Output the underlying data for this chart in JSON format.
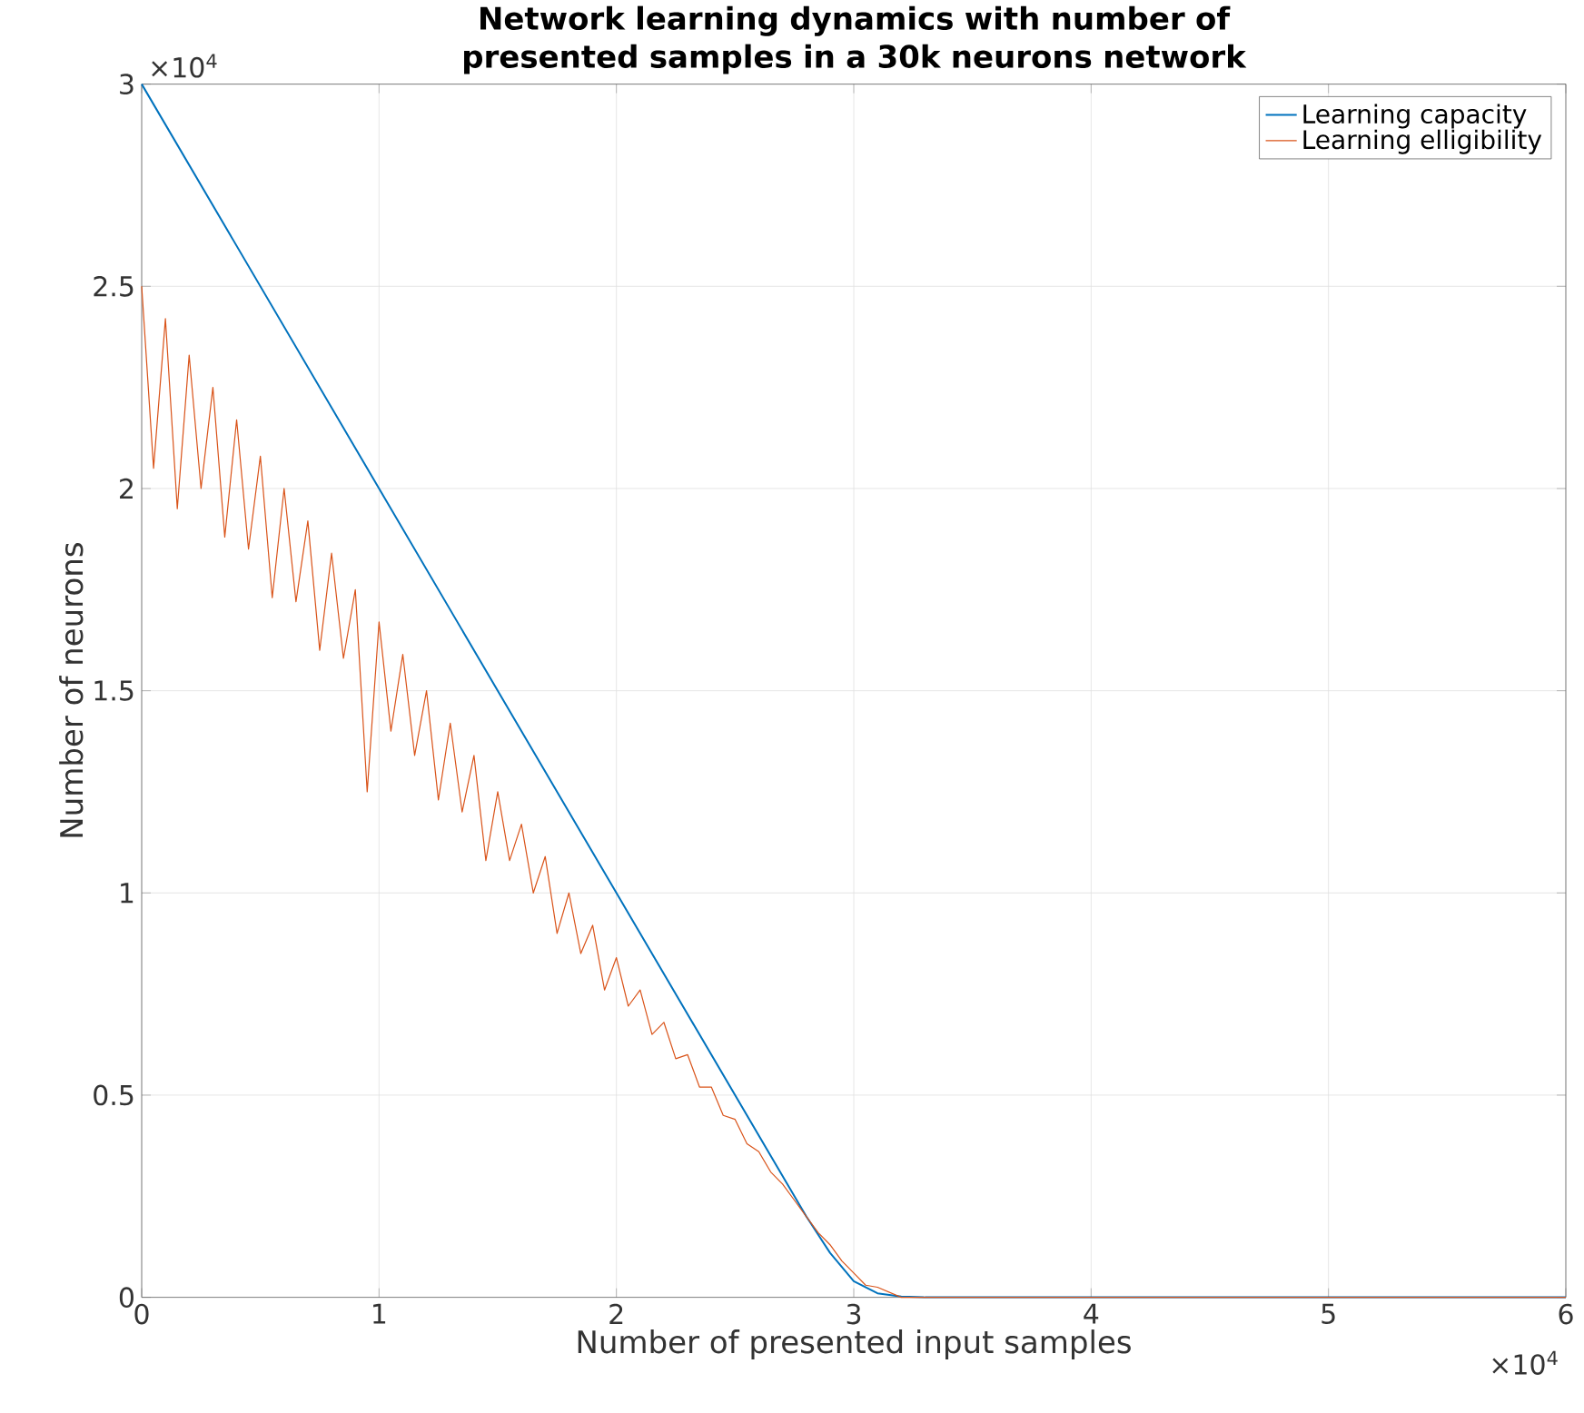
{
  "chart_data": {
    "type": "line",
    "title": "Network learning dynamics  with number of\npresented samples in a 30k neurons network",
    "xlabel": "Number of presented input samples",
    "ylabel": "Number of neurons",
    "annotations": [
      "×10$^{4}$",
      "×10$^{4}$"
    ],
    "xlim": [
      0,
      6
    ],
    "ylim": [
      0,
      3
    ],
    "xticks": [
      0,
      1,
      2,
      3,
      4,
      5,
      6
    ],
    "yticks": [
      0,
      0.5,
      1,
      1.5,
      2,
      2.5,
      3
    ],
    "grid": true,
    "legend": "top right",
    "line_style": "solid",
    "series": [
      {
        "name": "Learning capacity",
        "color": "#0072bd",
        "x": [
          0,
          1,
          2,
          2.8,
          2.9,
          3.0,
          3.1,
          3.2,
          3.3,
          6
        ],
        "values": [
          3,
          2,
          1,
          0.2,
          0.11,
          0.04,
          0.01,
          0.002,
          0,
          0
        ]
      },
      {
        "name": "Learning elligibility",
        "color": "#d95319",
        "x": [
          0,
          0.05,
          0.1,
          0.15,
          0.2,
          0.25,
          0.3,
          0.35,
          0.4,
          0.45,
          0.5,
          0.55,
          0.6,
          0.65,
          0.7,
          0.75,
          0.8,
          0.85,
          0.9,
          0.95,
          1.0,
          1.05,
          1.1,
          1.15,
          1.2,
          1.25,
          1.3,
          1.35,
          1.4,
          1.45,
          1.5,
          1.55,
          1.6,
          1.65,
          1.7,
          1.75,
          1.8,
          1.85,
          1.9,
          1.95,
          2.0,
          2.05,
          2.1,
          2.15,
          2.2,
          2.25,
          2.3,
          2.35,
          2.4,
          2.45,
          2.5,
          2.55,
          2.6,
          2.65,
          2.7,
          2.75,
          2.8,
          2.85,
          2.9,
          2.95,
          3.0,
          3.05,
          3.1,
          3.2,
          3.3,
          6
        ],
        "values": [
          2.5,
          2.05,
          2.42,
          1.95,
          2.33,
          2.0,
          2.25,
          1.88,
          2.17,
          1.85,
          2.08,
          1.73,
          2.0,
          1.72,
          1.92,
          1.6,
          1.84,
          1.58,
          1.75,
          1.25,
          1.67,
          1.4,
          1.59,
          1.34,
          1.5,
          1.23,
          1.42,
          1.2,
          1.34,
          1.08,
          1.25,
          1.08,
          1.17,
          1.0,
          1.09,
          0.9,
          1.0,
          0.85,
          0.92,
          0.76,
          0.84,
          0.72,
          0.76,
          0.65,
          0.68,
          0.59,
          0.6,
          0.52,
          0.52,
          0.45,
          0.44,
          0.38,
          0.36,
          0.31,
          0.28,
          0.24,
          0.2,
          0.16,
          0.13,
          0.09,
          0.06,
          0.03,
          0.025,
          0,
          0,
          0
        ]
      }
    ]
  }
}
